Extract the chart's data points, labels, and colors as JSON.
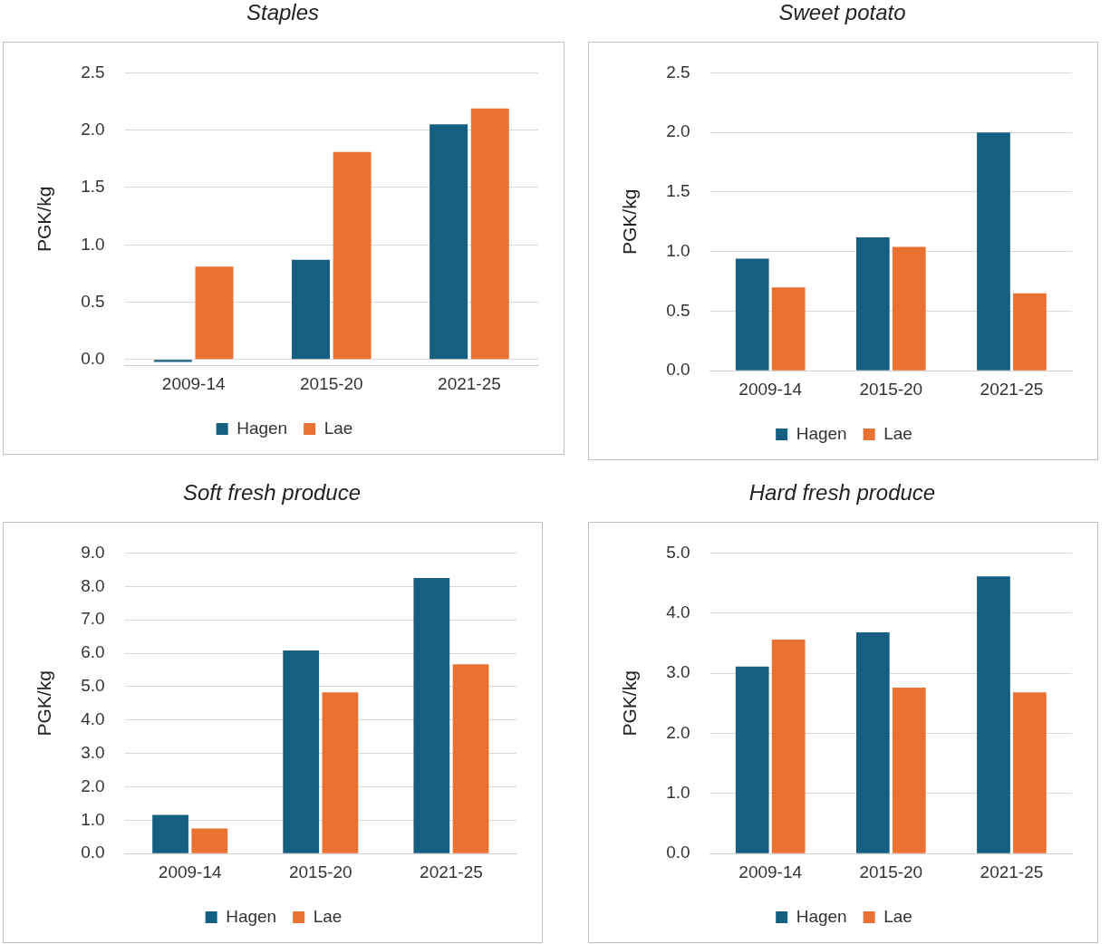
{
  "chart_data": [
    {
      "type": "bar",
      "title": "Staples",
      "ylabel": "PGK/kg",
      "categories": [
        "2009-14",
        "2015-20",
        "2021-25"
      ],
      "series": [
        {
          "name": "Hagen",
          "color": "#156082",
          "values": [
            -0.02,
            0.87,
            2.05
          ]
        },
        {
          "name": "Lae",
          "color": "#e97132",
          "values": [
            0.81,
            1.81,
            2.19
          ]
        }
      ],
      "ylim": [
        -0.05,
        2.5
      ],
      "yticks": [
        {
          "value": 0,
          "label": "0.0"
        },
        {
          "value": 0.5,
          "label": "0.5"
        },
        {
          "value": 1,
          "label": "1.0"
        },
        {
          "value": 1.5,
          "label": "1.5"
        },
        {
          "value": 2,
          "label": "2.0"
        },
        {
          "value": 2.5,
          "label": "2.5"
        }
      ],
      "grid": "y",
      "legend": "bottom"
    },
    {
      "type": "bar",
      "title": "Sweet potato",
      "ylabel": "PGK/kg",
      "categories": [
        "2009-14",
        "2015-20",
        "2021-25"
      ],
      "series": [
        {
          "name": "Hagen",
          "color": "#156082",
          "values": [
            0.94,
            1.12,
            2.0
          ]
        },
        {
          "name": "Lae",
          "color": "#e97132",
          "values": [
            0.7,
            1.04,
            0.65
          ]
        }
      ],
      "ylim": [
        0,
        2.5
      ],
      "yticks": [
        {
          "value": 0,
          "label": "0.0"
        },
        {
          "value": 0.5,
          "label": "0.5"
        },
        {
          "value": 1,
          "label": "1.0"
        },
        {
          "value": 1.5,
          "label": "1.5"
        },
        {
          "value": 2,
          "label": "2.0"
        },
        {
          "value": 2.5,
          "label": "2.5"
        }
      ],
      "grid": "y",
      "legend": "bottom"
    },
    {
      "type": "bar",
      "title": "Soft fresh produce",
      "ylabel": "PGK/kg",
      "categories": [
        "2009-14",
        "2015-20",
        "2021-25"
      ],
      "series": [
        {
          "name": "Hagen",
          "color": "#156082",
          "values": [
            1.16,
            6.08,
            8.25
          ]
        },
        {
          "name": "Lae",
          "color": "#e97132",
          "values": [
            0.75,
            4.83,
            5.67
          ]
        }
      ],
      "ylim": [
        0,
        9
      ],
      "yticks": [
        {
          "value": 0,
          "label": "0.0"
        },
        {
          "value": 1,
          "label": "1.0"
        },
        {
          "value": 2,
          "label": "2.0"
        },
        {
          "value": 3,
          "label": "3.0"
        },
        {
          "value": 4,
          "label": "4.0"
        },
        {
          "value": 5,
          "label": "5.0"
        },
        {
          "value": 6,
          "label": "6.0"
        },
        {
          "value": 7,
          "label": "7.0"
        },
        {
          "value": 8,
          "label": "8.0"
        },
        {
          "value": 9,
          "label": "9.0"
        }
      ],
      "grid": "y",
      "legend": "bottom"
    },
    {
      "type": "bar",
      "title": "Hard fresh produce",
      "ylabel": "PGK/kg",
      "categories": [
        "2009-14",
        "2015-20",
        "2021-25"
      ],
      "series": [
        {
          "name": "Hagen",
          "color": "#156082",
          "values": [
            3.11,
            3.68,
            4.61
          ]
        },
        {
          "name": "Lae",
          "color": "#e97132",
          "values": [
            3.56,
            2.76,
            2.68
          ]
        }
      ],
      "ylim": [
        0,
        5
      ],
      "yticks": [
        {
          "value": 0,
          "label": "0.0"
        },
        {
          "value": 1,
          "label": "1.0"
        },
        {
          "value": 2,
          "label": "2.0"
        },
        {
          "value": 3,
          "label": "3.0"
        },
        {
          "value": 4,
          "label": "4.0"
        },
        {
          "value": 5,
          "label": "5.0"
        }
      ],
      "grid": "y",
      "legend": "bottom"
    }
  ]
}
